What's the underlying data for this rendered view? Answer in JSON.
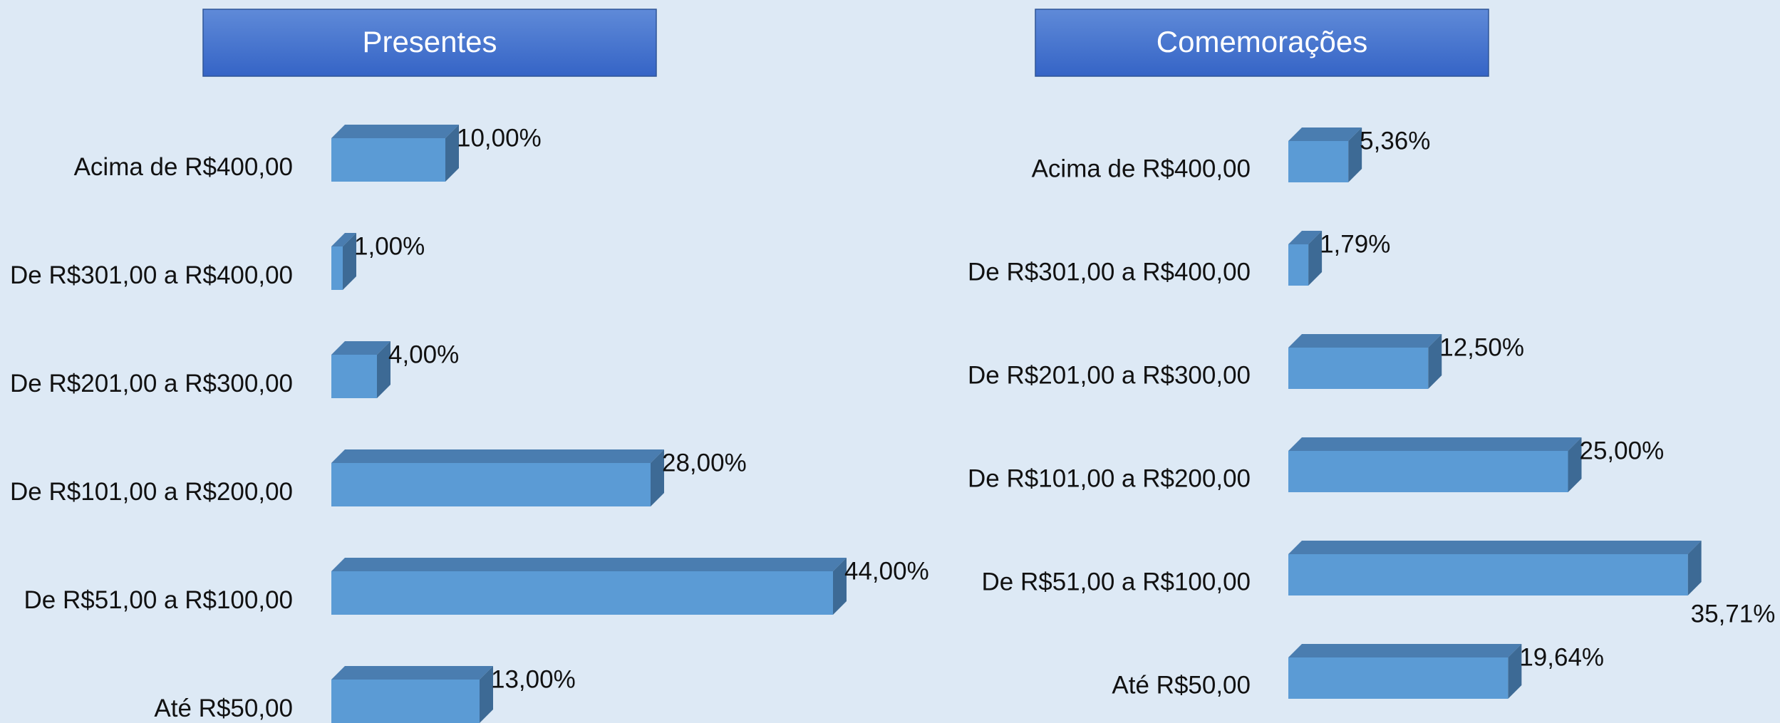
{
  "chart_data": [
    {
      "type": "bar3d",
      "title": "Presentes",
      "categories": [
        "Acima de R$400,00",
        "De R$301,00 a R$400,00",
        "De R$201,00 a R$300,00",
        "De R$101,00 a R$200,00",
        "De R$51,00 a R$100,00",
        "Até R$50,00"
      ],
      "values": [
        10,
        1,
        4,
        28,
        44,
        13
      ],
      "value_labels": [
        "10,00%",
        "1,00%",
        "4,00%",
        "28,00%",
        "44,00%",
        "13,00%"
      ],
      "color": "#5b9bd5"
    },
    {
      "type": "bar3d",
      "title": "Comemorações",
      "categories": [
        "Acima de R$400,00",
        "De R$301,00 a R$400,00",
        "De R$201,00 a R$300,00",
        "De R$101,00 a R$200,00",
        "De R$51,00 a R$100,00",
        "Até R$50,00"
      ],
      "values": [
        5.36,
        1.79,
        12.5,
        25,
        35.71,
        19.64
      ],
      "value_labels": [
        "5,36%",
        "1,79%",
        "12,50%",
        "25,00%",
        "35,71%",
        "19,64%"
      ],
      "color": "#5b9bd5"
    }
  ]
}
